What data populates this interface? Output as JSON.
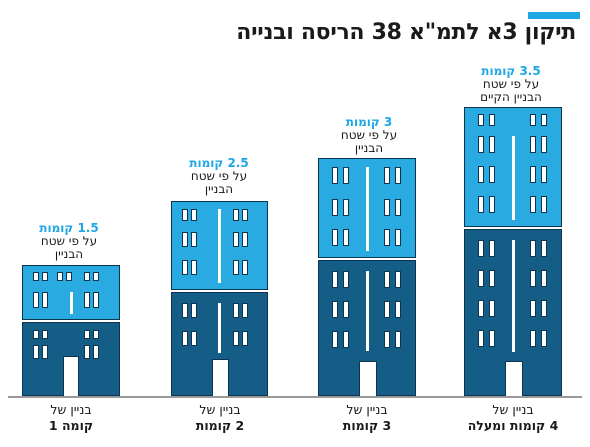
{
  "header": {
    "title": "תיקון 3א לתמ\"א 38 הריסה ובנייה",
    "accent_color": "#1ea7e4"
  },
  "colors": {
    "new_floors": "#29abe2",
    "existing_floors": "#135d87",
    "outline": "#0d3550",
    "highlight_text": "#1ea7e4"
  },
  "buildings": [
    {
      "note_highlight": "1.5 קומות",
      "note_lines": [
        "על פי שטח",
        "הבניין"
      ],
      "caption_line": "בניין של",
      "caption_bold": "קומה 1"
    },
    {
      "note_highlight": "2.5 קומות",
      "note_lines": [
        "על פי שטח",
        "הבניין"
      ],
      "caption_line": "בניין של",
      "caption_bold": "2 קומות"
    },
    {
      "note_highlight": "3 קומות",
      "note_lines": [
        "על פי שטח",
        "הבניין"
      ],
      "caption_line": "בניין של",
      "caption_bold": "3 קומות"
    },
    {
      "note_highlight": "3.5 קומות",
      "note_lines": [
        "על פי שטח",
        "הבניין הקיים"
      ],
      "caption_line": "בניין של",
      "caption_bold": "4 קומות ומעלה"
    }
  ]
}
